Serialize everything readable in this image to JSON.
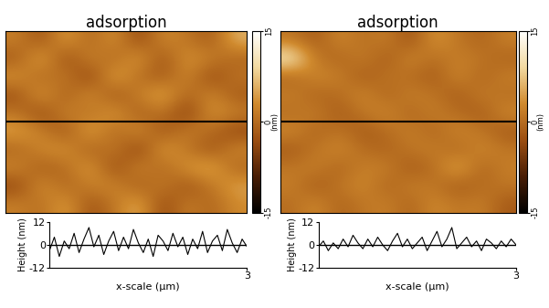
{
  "chart_data": [
    {
      "type": "heatmap",
      "title": "adsorption",
      "cells": [
        [
          2,
          -3,
          5,
          -1,
          4,
          -4,
          3,
          1,
          -2,
          6
        ],
        [
          -2,
          6,
          -4,
          3,
          -1,
          5,
          -3,
          4,
          2,
          -1
        ],
        [
          4,
          -1,
          2,
          -5,
          6,
          0,
          -2,
          3,
          -4,
          1
        ],
        [
          -3,
          5,
          -2,
          4,
          -3,
          2,
          6,
          -1,
          3,
          -2
        ],
        [
          1,
          -4,
          3,
          0,
          5,
          -2,
          1,
          -5,
          4,
          2
        ],
        [
          5,
          2,
          -3,
          6,
          -1,
          4,
          -3,
          2,
          0,
          -4
        ],
        [
          -1,
          3,
          4,
          -2,
          2,
          -5,
          5,
          1,
          -3,
          3
        ],
        [
          3,
          -2,
          0,
          5,
          -4,
          3,
          -1,
          4,
          6,
          -1
        ],
        [
          -4,
          4,
          -1,
          2,
          3,
          -2,
          2,
          -3,
          1,
          5
        ],
        [
          2,
          0,
          5,
          -3,
          1,
          6,
          -4,
          2,
          -1,
          3
        ]
      ],
      "colorbar": {
        "range": [
          -15,
          15
        ],
        "ticks": [
          -15,
          0,
          15
        ],
        "label": "(nm)"
      }
    },
    {
      "type": "heatmap",
      "title": "adsorption",
      "cells": [
        [
          1,
          -2,
          3,
          0,
          2,
          -3,
          4,
          1,
          -1,
          2
        ],
        [
          12,
          1,
          -1,
          2,
          -2,
          3,
          0,
          2,
          1,
          -1
        ],
        [
          -1,
          3,
          2,
          -2,
          1,
          0,
          -2,
          3,
          -1,
          2
        ],
        [
          2,
          -1,
          0,
          3,
          -1,
          2,
          1,
          -2,
          2,
          0
        ],
        [
          0,
          2,
          -2,
          1,
          3,
          -1,
          2,
          0,
          -2,
          3
        ],
        [
          3,
          -1,
          1,
          -2,
          0,
          2,
          -1,
          3,
          1,
          -2
        ],
        [
          -2,
          1,
          3,
          0,
          -1,
          1,
          2,
          -1,
          3,
          1
        ],
        [
          1,
          2,
          -1,
          2,
          2,
          -2,
          0,
          6,
          -1,
          2
        ],
        [
          2,
          -2,
          1,
          3,
          -1,
          2,
          1,
          -2,
          0,
          1
        ],
        [
          0,
          3,
          -1,
          1,
          2,
          -1,
          3,
          1,
          2,
          -2
        ]
      ],
      "colorbar": {
        "range": [
          -15,
          15
        ],
        "ticks": [
          -15,
          0,
          15
        ],
        "label": "(nm)"
      }
    },
    {
      "type": "line",
      "xlabel": "x-scale (μm)",
      "ylabel": "Height (nm)",
      "x": [
        0,
        0.075,
        0.15,
        0.225,
        0.3,
        0.375,
        0.45,
        0.525,
        0.6,
        0.675,
        0.75,
        0.825,
        0.9,
        0.975,
        1.05,
        1.125,
        1.2,
        1.275,
        1.35,
        1.425,
        1.5,
        1.575,
        1.65,
        1.725,
        1.8,
        1.875,
        1.95,
        2.025,
        2.1,
        2.175,
        2.25,
        2.325,
        2.4,
        2.475,
        2.55,
        2.625,
        2.7,
        2.775,
        2.85,
        2.925,
        3
      ],
      "values": [
        -3,
        4,
        -6,
        2,
        -2,
        6,
        -4,
        3,
        9,
        -1,
        5,
        -5,
        2,
        7,
        -3,
        4,
        -2,
        8,
        1,
        -4,
        3,
        -6,
        5,
        2,
        -3,
        6,
        -1,
        4,
        -5,
        3,
        -2,
        7,
        -4,
        2,
        5,
        -3,
        8,
        1,
        -4,
        3,
        -1
      ],
      "xlim": [
        0,
        3
      ],
      "xticks": [
        3
      ],
      "ylim": [
        -12,
        12
      ],
      "yticks": [
        -12,
        0,
        12
      ],
      "reference_line": 0
    },
    {
      "type": "line",
      "xlabel": "x-scale (μm)",
      "ylabel": "Height (nm)",
      "x": [
        0,
        0.075,
        0.15,
        0.225,
        0.3,
        0.375,
        0.45,
        0.525,
        0.6,
        0.675,
        0.75,
        0.825,
        0.9,
        0.975,
        1.05,
        1.125,
        1.2,
        1.275,
        1.35,
        1.425,
        1.5,
        1.575,
        1.65,
        1.725,
        1.8,
        1.875,
        1.95,
        2.025,
        2.1,
        2.175,
        2.25,
        2.325,
        2.4,
        2.475,
        2.55,
        2.625,
        2.7,
        2.775,
        2.85,
        2.925,
        3
      ],
      "values": [
        -1,
        2,
        -3,
        1,
        -2,
        3,
        -1,
        5,
        1,
        -2,
        3,
        -1,
        4,
        0,
        -3,
        2,
        6,
        -1,
        3,
        -2,
        1,
        4,
        -3,
        2,
        7,
        -1,
        3,
        9,
        -2,
        1,
        4,
        -1,
        2,
        -3,
        3,
        1,
        -2,
        2,
        -1,
        3,
        0
      ],
      "xlim": [
        0,
        3
      ],
      "xticks": [
        3
      ],
      "ylim": [
        -12,
        12
      ],
      "yticks": [
        -12,
        0,
        12
      ],
      "reference_line": 0
    }
  ]
}
